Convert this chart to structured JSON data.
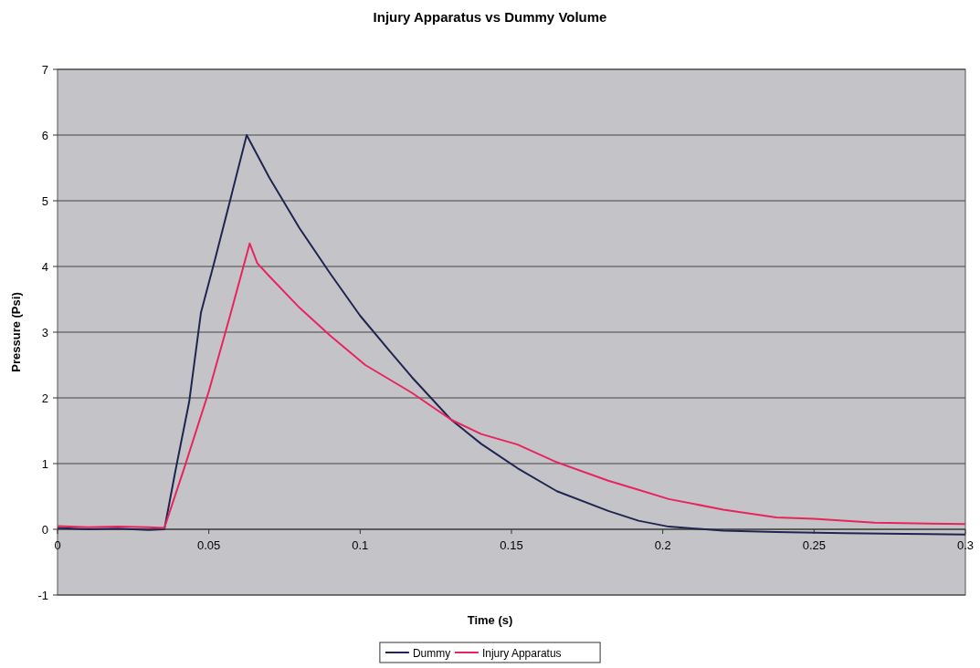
{
  "chart_data": {
    "type": "line",
    "title": "Injury Apparatus vs Dummy Volume",
    "xlabel": "Time (s)",
    "ylabel": "Pressure (Psi)",
    "xlim": [
      0,
      0.3
    ],
    "xticks": [
      0,
      0.05,
      0.1,
      0.15,
      0.2,
      0.25,
      0.3
    ],
    "ylim": [
      -1,
      7
    ],
    "yticks": [
      -1,
      0,
      1,
      2,
      3,
      4,
      5,
      6,
      7
    ],
    "grid": "y",
    "legend": "bottom",
    "marker": "none",
    "line_style": "solid",
    "series": [
      {
        "name": "Dummy",
        "color": "#1f2550",
        "x": [
          0,
          0.01,
          0.02,
          0.03,
          0.0353,
          0.039,
          0.0435,
          0.0474,
          0.052,
          0.057,
          0.0625,
          0.07,
          0.08,
          0.09,
          0.1,
          0.11,
          0.117,
          0.13,
          0.14,
          0.152,
          0.165,
          0.182,
          0.192,
          0.202,
          0.22,
          0.2375,
          0.26,
          0.28,
          0.3
        ],
        "values": [
          0.02,
          0,
          0.01,
          -0.01,
          0,
          0.9,
          1.94,
          3.3,
          4.1,
          5.0,
          6.0,
          5.35,
          4.58,
          3.9,
          3.25,
          2.7,
          2.32,
          1.67,
          1.3,
          0.93,
          0.58,
          0.28,
          0.13,
          0.04,
          -0.02,
          -0.04,
          -0.06,
          -0.07,
          -0.08
        ]
      },
      {
        "name": "Injury Apparatus",
        "color": "#e8245e",
        "x": [
          0,
          0.01,
          0.02,
          0.03,
          0.0353,
          0.042,
          0.05,
          0.057,
          0.0635,
          0.066,
          0.07,
          0.08,
          0.09,
          0.1017,
          0.117,
          0.13,
          0.14,
          0.152,
          0.165,
          0.182,
          0.192,
          0.202,
          0.22,
          0.2375,
          0.25,
          0.27,
          0.3
        ],
        "values": [
          0.05,
          0.03,
          0.04,
          0.03,
          0.02,
          0.95,
          2.1,
          3.25,
          4.35,
          4.05,
          3.85,
          3.37,
          2.95,
          2.5,
          2.08,
          1.67,
          1.45,
          1.29,
          1.02,
          0.74,
          0.6,
          0.46,
          0.3,
          0.18,
          0.16,
          0.1,
          0.08
        ]
      }
    ]
  }
}
